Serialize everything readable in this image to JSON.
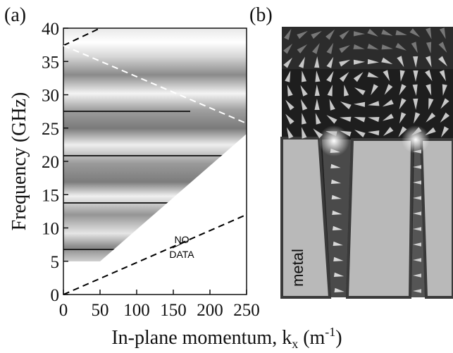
{
  "panels": {
    "a": "(a)",
    "b": "(b)",
    "b_label": "metal"
  },
  "chart_data": {
    "type": "line",
    "y_label": "Frequency (GHz)",
    "x_label": [
      "In-plane momentum, k",
      "x",
      " (m",
      "-1",
      ")"
    ],
    "annotations": [
      "NO",
      "DATA"
    ],
    "line_style": "dashed",
    "series": [
      {
        "color": "#000000",
        "x": [
          0,
          50
        ],
        "values": [
          37.4,
          40
        ]
      },
      {
        "color": "#ffffff",
        "x": [
          0,
          250
        ],
        "values": [
          37.4,
          25.7
        ]
      },
      {
        "color": "#000000",
        "x": [
          0,
          250
        ],
        "values": [
          0,
          12
        ]
      }
    ],
    "xlim": [
      0,
      250
    ],
    "xticks": [
      0,
      50,
      100,
      150,
      200,
      250
    ],
    "ylim": [
      0,
      40
    ],
    "yticks": [
      0,
      5,
      10,
      15,
      20,
      25,
      30,
      35,
      40
    ]
  }
}
